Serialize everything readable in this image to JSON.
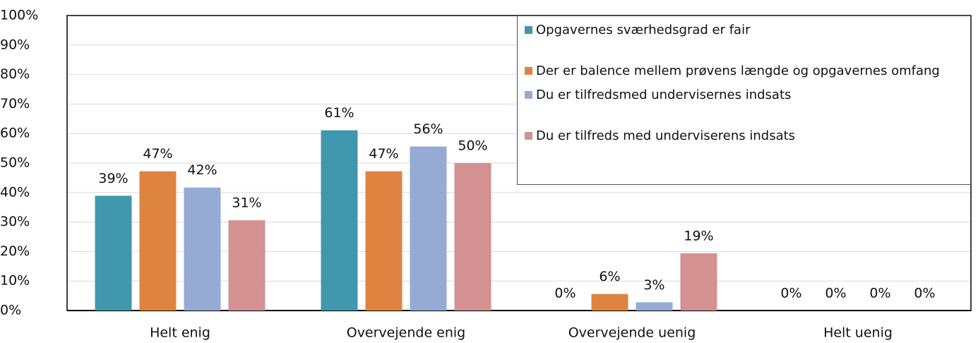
{
  "chart_data": {
    "type": "bar",
    "categories": [
      "Helt enig",
      "Overvejende enig",
      "Overvejende uenig",
      "Helt uenig"
    ],
    "series": [
      {
        "name": "Opgavernes sværhedsgrad er fair",
        "color": "#4198ae",
        "values": [
          38.9,
          61.1,
          0,
          0
        ],
        "value_labels": [
          "39%",
          "61%",
          "0%",
          "0%"
        ]
      },
      {
        "name": "Der er balence mellem prøvens længde og opgavernes omfang",
        "color": "#de8440",
        "values": [
          47.2,
          47.2,
          5.6,
          0
        ],
        "value_labels": [
          "47%",
          "47%",
          "6%",
          "0%"
        ]
      },
      {
        "name": "Du er tilfredsmed undervisernes indsats",
        "color": "#95abd4",
        "values": [
          41.7,
          55.6,
          2.8,
          0
        ],
        "value_labels": [
          "42%",
          "56%",
          "3%",
          "0%"
        ]
      },
      {
        "name": "Du er tilfreds med underviserens indsats",
        "color": "#d49191",
        "values": [
          30.6,
          50,
          19.4,
          0
        ],
        "value_labels": [
          "31%",
          "50%",
          "19%",
          "0%"
        ]
      }
    ],
    "ylim": [
      0,
      100
    ],
    "yticks": [
      {
        "value": 0,
        "label": "0%"
      },
      {
        "value": 10,
        "label": "10%"
      },
      {
        "value": 20,
        "label": "20%"
      },
      {
        "value": 30,
        "label": "30%"
      },
      {
        "value": 40,
        "label": "40%"
      },
      {
        "value": 50,
        "label": "50%"
      },
      {
        "value": 60,
        "label": "60%"
      },
      {
        "value": 70,
        "label": "70%"
      },
      {
        "value": 80,
        "label": "80%"
      },
      {
        "value": 90,
        "label": "90%"
      },
      {
        "value": 100,
        "label": "100%"
      }
    ],
    "grid": true,
    "legend": "upper right"
  }
}
